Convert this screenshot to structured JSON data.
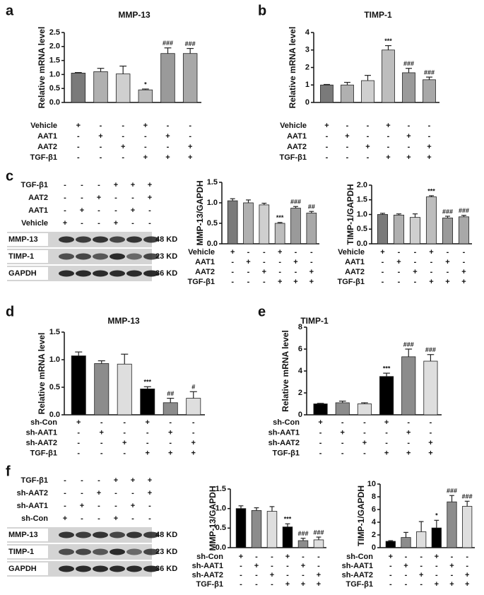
{
  "chart_data": [
    {
      "type": "bar",
      "panel": "a",
      "title": "MMP-13",
      "y_label": "Relative mRNA level",
      "values": [
        1.05,
        1.1,
        1.02,
        0.45,
        1.75,
        1.75
      ],
      "errors": [
        0.02,
        0.12,
        0.28,
        0.03,
        0.2,
        0.18
      ],
      "annotations": [
        null,
        null,
        null,
        "*",
        "###",
        "###"
      ],
      "colors": [
        "#7a7a7a",
        "#b0b0b0",
        "#cfcfcf",
        "#bdbdbd",
        "#9a9a9a",
        "#a8a8a8"
      ],
      "ylim": [
        0,
        2.5
      ],
      "yticks": [
        {
          "value": 0,
          "label": "0.0"
        },
        0.5,
        {
          "value": 1,
          "label": "1.0"
        },
        1.5,
        {
          "value": 2,
          "label": "2.0"
        },
        2.5
      ],
      "conditions": [
        {
          "name": "Vehicle",
          "signs": [
            "+",
            "-",
            "-",
            "+",
            "-",
            "-"
          ]
        },
        {
          "name": "AAT1",
          "signs": [
            "-",
            "+",
            "-",
            "-",
            "+",
            "-"
          ]
        },
        {
          "name": "AAT2",
          "signs": [
            "-",
            "-",
            "+",
            "-",
            "-",
            "+"
          ]
        },
        {
          "name": "TGF-β1",
          "signs": [
            "-",
            "-",
            "-",
            "+",
            "+",
            "+"
          ]
        }
      ]
    },
    {
      "type": "bar",
      "panel": "b",
      "title": "TIMP-1",
      "y_label": "Relative mRNA level",
      "values": [
        1.0,
        1.0,
        1.25,
        3.0,
        1.7,
        1.3
      ],
      "errors": [
        0.03,
        0.15,
        0.3,
        0.25,
        0.25,
        0.15
      ],
      "annotations": [
        null,
        null,
        null,
        "***",
        "###",
        "###"
      ],
      "colors": [
        "#7a7a7a",
        "#b0b0b0",
        "#cfcfcf",
        "#bdbdbd",
        "#9a9a9a",
        "#a8a8a8"
      ],
      "ylim": [
        0,
        4
      ],
      "yticks": [
        0,
        1,
        2,
        3,
        4
      ],
      "conditions": [
        {
          "name": "Vehicle",
          "signs": [
            "+",
            "-",
            "-",
            "+",
            "-",
            "-"
          ]
        },
        {
          "name": "AAT1",
          "signs": [
            "-",
            "+",
            "-",
            "-",
            "+",
            "-"
          ]
        },
        {
          "name": "AAT2",
          "signs": [
            "-",
            "-",
            "+",
            "-",
            "-",
            "+"
          ]
        },
        {
          "name": "TGF-β1",
          "signs": [
            "-",
            "-",
            "-",
            "+",
            "+",
            "+"
          ]
        }
      ]
    },
    {
      "type": "bar",
      "y_label": "MMP-13/GAPDH",
      "values": [
        1.05,
        1.0,
        0.95,
        0.5,
        0.87,
        0.75
      ],
      "errors": [
        0.05,
        0.07,
        0.04,
        0.02,
        0.04,
        0.04
      ],
      "annotations": [
        null,
        null,
        null,
        "***",
        "###",
        "##"
      ],
      "colors": [
        "#7a7a7a",
        "#b0b0b0",
        "#cfcfcf",
        "#bdbdbd",
        "#9a9a9a",
        "#a8a8a8"
      ],
      "ylim": [
        0,
        1.5
      ],
      "yticks": [
        {
          "value": 0,
          "label": "0.0"
        },
        0.5,
        {
          "value": 1,
          "label": "1.0"
        },
        1.5
      ],
      "conditions": [
        {
          "name": "Vehicle",
          "signs": [
            "+",
            "-",
            "-",
            "+",
            "-",
            "-"
          ]
        },
        {
          "name": "AAT1",
          "signs": [
            "-",
            "+",
            "-",
            "-",
            "+",
            "-"
          ]
        },
        {
          "name": "AAT2",
          "signs": [
            "-",
            "-",
            "+",
            "-",
            "-",
            "+"
          ]
        },
        {
          "name": "TGF-β1",
          "signs": [
            "-",
            "-",
            "-",
            "+",
            "+",
            "+"
          ]
        }
      ]
    },
    {
      "type": "bar",
      "y_label": "TIMP-1/GAPDH",
      "values": [
        1.0,
        0.98,
        0.9,
        1.6,
        0.88,
        0.92
      ],
      "errors": [
        0.04,
        0.04,
        0.12,
        0.04,
        0.06,
        0.05
      ],
      "annotations": [
        null,
        null,
        null,
        "***",
        "###",
        "###"
      ],
      "colors": [
        "#7a7a7a",
        "#b0b0b0",
        "#cfcfcf",
        "#bdbdbd",
        "#9a9a9a",
        "#a8a8a8"
      ],
      "ylim": [
        0,
        2
      ],
      "yticks": [
        {
          "value": 0,
          "label": "0.0"
        },
        0.5,
        {
          "value": 1,
          "label": "1.0"
        },
        1.5,
        {
          "value": 2,
          "label": "2.0"
        }
      ],
      "conditions": [
        {
          "name": "Vehicle",
          "signs": [
            "+",
            "-",
            "-",
            "+",
            "-",
            "-"
          ]
        },
        {
          "name": "AAT1",
          "signs": [
            "-",
            "+",
            "-",
            "-",
            "+",
            "-"
          ]
        },
        {
          "name": "AAT2",
          "signs": [
            "-",
            "-",
            "+",
            "-",
            "-",
            "+"
          ]
        },
        {
          "name": "TGF-β1",
          "signs": [
            "-",
            "-",
            "-",
            "+",
            "+",
            "+"
          ]
        }
      ]
    },
    {
      "type": "bar",
      "panel": "d",
      "title": "MMP-13",
      "y_label": "Relative mRNA level",
      "values": [
        1.07,
        0.93,
        0.92,
        0.47,
        0.22,
        0.3
      ],
      "errors": [
        0.07,
        0.05,
        0.18,
        0.04,
        0.08,
        0.12
      ],
      "annotations": [
        null,
        null,
        null,
        "***",
        "##",
        "#"
      ],
      "colors": [
        "#000000",
        "#8c8c8c",
        "#dedede",
        "#000000",
        "#8c8c8c",
        "#dedede"
      ],
      "ylim": [
        0,
        1.5
      ],
      "yticks": [
        {
          "value": 0,
          "label": "0.0"
        },
        0.5,
        {
          "value": 1,
          "label": "1.0"
        },
        1.5
      ],
      "conditions": [
        {
          "name": "sh-Con",
          "signs": [
            "+",
            "-",
            "-",
            "+",
            "-",
            "-"
          ]
        },
        {
          "name": "sh-AAT1",
          "signs": [
            "-",
            "+",
            "-",
            "-",
            "+",
            "-"
          ]
        },
        {
          "name": "sh-AAT2",
          "signs": [
            "-",
            "-",
            "+",
            "-",
            "-",
            "+"
          ]
        },
        {
          "name": "TGF-β1",
          "signs": [
            "-",
            "-",
            "-",
            "+",
            "+",
            "+"
          ]
        }
      ]
    },
    {
      "type": "bar",
      "panel": "e",
      "title": "TIMP-1",
      "y_label": "Relative mRNA level",
      "values": [
        1.0,
        1.1,
        1.0,
        3.5,
        5.3,
        4.9
      ],
      "errors": [
        0.05,
        0.15,
        0.1,
        0.3,
        0.7,
        0.6
      ],
      "annotations": [
        null,
        null,
        null,
        "***",
        "###",
        "###"
      ],
      "colors": [
        "#000000",
        "#8c8c8c",
        "#dedede",
        "#000000",
        "#8c8c8c",
        "#dedede"
      ],
      "ylim": [
        0,
        8
      ],
      "yticks": [
        0,
        2,
        4,
        6,
        8
      ],
      "conditions": [
        {
          "name": "sh-Con",
          "signs": [
            "+",
            "-",
            "-",
            "+",
            "-",
            "-"
          ]
        },
        {
          "name": "sh-AAT1",
          "signs": [
            "-",
            "+",
            "-",
            "-",
            "+",
            "-"
          ]
        },
        {
          "name": "sh-AAT2",
          "signs": [
            "-",
            "-",
            "+",
            "-",
            "-",
            "+"
          ]
        },
        {
          "name": "TGF-β1",
          "signs": [
            "-",
            "-",
            "-",
            "+",
            "+",
            "+"
          ]
        }
      ]
    },
    {
      "type": "bar",
      "y_label": "MMP-13/GAPDH",
      "values": [
        1.0,
        0.95,
        0.93,
        0.53,
        0.18,
        0.2
      ],
      "errors": [
        0.07,
        0.07,
        0.12,
        0.08,
        0.06,
        0.07
      ],
      "annotations": [
        null,
        null,
        null,
        "***",
        "###",
        "###"
      ],
      "colors": [
        "#000000",
        "#8c8c8c",
        "#dedede",
        "#000000",
        "#8c8c8c",
        "#dedede"
      ],
      "ylim": [
        0,
        1.5
      ],
      "yticks": [
        {
          "value": 0,
          "label": "0.0"
        },
        0.5,
        {
          "value": 1,
          "label": "1.0"
        },
        1.5
      ],
      "conditions": [
        {
          "name": "sh-Con",
          "signs": [
            "+",
            "-",
            "-",
            "+",
            "-",
            "-"
          ]
        },
        {
          "name": "sh-AAT1",
          "signs": [
            "-",
            "+",
            "-",
            "-",
            "+",
            "-"
          ]
        },
        {
          "name": "sh-AAT2",
          "signs": [
            "-",
            "-",
            "+",
            "-",
            "-",
            "+"
          ]
        },
        {
          "name": "TGF-β1",
          "signs": [
            "-",
            "-",
            "-",
            "+",
            "+",
            "+"
          ]
        }
      ]
    },
    {
      "type": "bar",
      "y_label": "TIMP-1/GAPDH",
      "values": [
        1.0,
        1.6,
        2.5,
        3.1,
        7.2,
        6.5
      ],
      "errors": [
        0.1,
        0.8,
        1.6,
        1.2,
        1.0,
        0.8
      ],
      "annotations": [
        null,
        null,
        null,
        "*",
        "###",
        "###"
      ],
      "colors": [
        "#000000",
        "#8c8c8c",
        "#dedede",
        "#000000",
        "#8c8c8c",
        "#dedede"
      ],
      "ylim": [
        0,
        10
      ],
      "yticks": [
        0,
        2,
        4,
        6,
        8,
        10
      ],
      "conditions": [
        {
          "name": "sh-Con",
          "signs": [
            "+",
            "-",
            "-",
            "+",
            "-",
            "-"
          ]
        },
        {
          "name": "sh-AAT1",
          "signs": [
            "-",
            "+",
            "-",
            "-",
            "+",
            "-"
          ]
        },
        {
          "name": "sh-AAT2",
          "signs": [
            "-",
            "-",
            "+",
            "-",
            "-",
            "+"
          ]
        },
        {
          "name": "TGF-β1",
          "signs": [
            "-",
            "-",
            "-",
            "+",
            "+",
            "+"
          ]
        }
      ]
    }
  ],
  "blots": [
    {
      "panel": "c",
      "treatments": [
        {
          "name": "TGF-β1",
          "signs": [
            "-",
            "-",
            "-",
            "+",
            "+",
            "+"
          ]
        },
        {
          "name": "AAT2",
          "signs": [
            "-",
            "-",
            "+",
            "-",
            "-",
            "+"
          ]
        },
        {
          "name": "AAT1",
          "signs": [
            "-",
            "+",
            "-",
            "-",
            "+",
            "-"
          ]
        },
        {
          "name": "Vehicle",
          "signs": [
            "+",
            "-",
            "-",
            "+",
            "-",
            "-"
          ]
        }
      ],
      "bands": [
        {
          "name": "MMP-13",
          "size": "48 KD"
        },
        {
          "name": "TIMP-1",
          "size": "23 KD"
        },
        {
          "name": "GAPDH",
          "size": "36 KD"
        }
      ]
    },
    {
      "panel": "f",
      "treatments": [
        {
          "name": "TGF-β1",
          "signs": [
            "-",
            "-",
            "-",
            "+",
            "+",
            "+"
          ]
        },
        {
          "name": "sh-AAT2",
          "signs": [
            "-",
            "-",
            "+",
            "-",
            "-",
            "+"
          ]
        },
        {
          "name": "sh-AAT1",
          "signs": [
            "-",
            "+",
            "-",
            "-",
            "+",
            "-"
          ]
        },
        {
          "name": "sh-Con",
          "signs": [
            "+",
            "-",
            "-",
            "+",
            "-",
            "-"
          ]
        }
      ],
      "bands": [
        {
          "name": "MMP-13",
          "size": "48 KD"
        },
        {
          "name": "TIMP-1",
          "size": "23 KD"
        },
        {
          "name": "GAPDH",
          "size": "36 KD"
        }
      ]
    }
  ]
}
